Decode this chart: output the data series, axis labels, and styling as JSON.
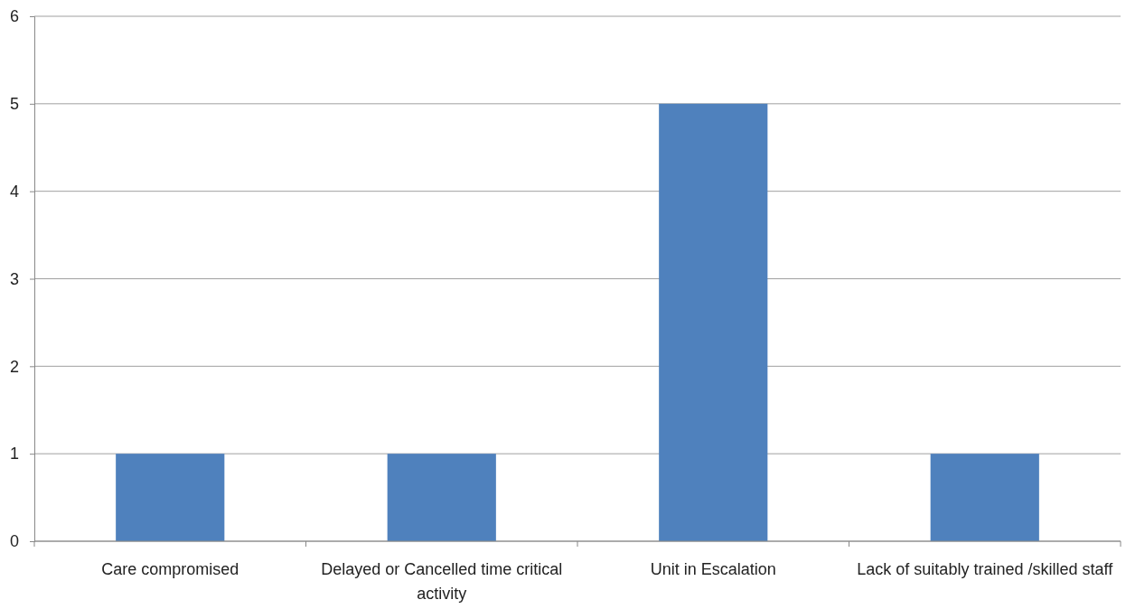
{
  "chart_data": {
    "type": "bar",
    "categories": [
      "Care compromised",
      "Delayed or Cancelled time critical activity",
      "Unit in Escalation",
      "Lack of suitably trained /skilled staff"
    ],
    "values": [
      1,
      1,
      5,
      1
    ],
    "color": "#4f81bd",
    "ylim": [
      0,
      6
    ],
    "yticks": [
      0,
      1,
      2,
      3,
      4,
      5,
      6
    ],
    "grid": "y"
  }
}
